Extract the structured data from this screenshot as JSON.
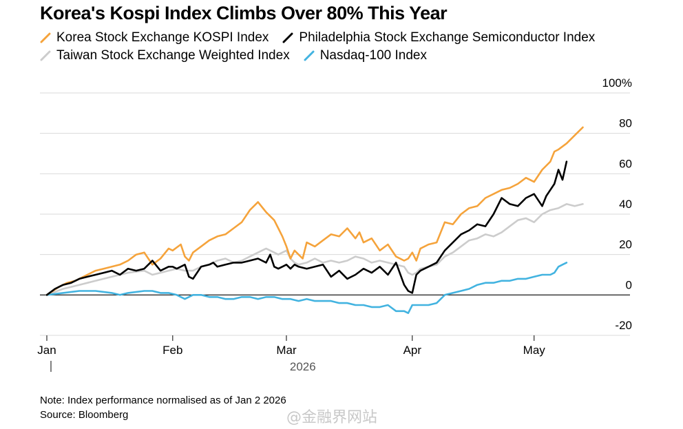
{
  "chart_data": {
    "type": "line",
    "title": "Korea's Kospi Index Climbs Over 80% This Year",
    "xlabel": "2026",
    "ylabel": "",
    "ylim": [
      -20,
      100
    ],
    "yticks": [
      {
        "value": 100,
        "label": "100%"
      },
      {
        "value": 80,
        "label": "80"
      },
      {
        "value": 60,
        "label": "60"
      },
      {
        "value": 40,
        "label": "40"
      },
      {
        "value": 20,
        "label": "20"
      },
      {
        "value": 0,
        "label": "0"
      },
      {
        "value": -20,
        "label": "-20"
      }
    ],
    "xlim": [
      0,
      137
    ],
    "xticks": [
      {
        "value": 0,
        "label": "Jan"
      },
      {
        "value": 31,
        "label": "Feb"
      },
      {
        "value": 59,
        "label": "Mar"
      },
      {
        "value": 90,
        "label": "Apr"
      },
      {
        "value": 120,
        "label": "May"
      }
    ],
    "grid": true,
    "legend_position": "top",
    "series": [
      {
        "name": "Korea Stock Exchange KOSPI Index",
        "color": "#f5a33b",
        "x": [
          0,
          3,
          5,
          7,
          9,
          12,
          14,
          16,
          18,
          20,
          22,
          24,
          26,
          28,
          30,
          31,
          33,
          34,
          35,
          36,
          38,
          40,
          42,
          44,
          46,
          48,
          50,
          52,
          54,
          56,
          57,
          58,
          59,
          60,
          61,
          62,
          63,
          64,
          66,
          68,
          70,
          72,
          74,
          76,
          77,
          78,
          80,
          82,
          84,
          86,
          88,
          89,
          90,
          91,
          92,
          94,
          96,
          98,
          100,
          102,
          104,
          106,
          108,
          110,
          112,
          114,
          116,
          118,
          120,
          122,
          124,
          125,
          126,
          128,
          130,
          132
        ],
        "values": [
          0,
          4,
          6,
          7,
          9,
          12,
          13,
          14,
          15,
          17,
          20,
          21,
          15,
          18,
          23,
          22,
          25,
          19,
          17,
          21,
          24,
          27,
          29,
          30,
          33,
          36,
          42,
          46,
          41,
          37,
          33,
          29,
          24,
          18,
          22,
          20,
          18,
          26,
          24,
          27,
          30,
          29,
          33,
          28,
          31,
          26,
          28,
          22,
          25,
          19,
          17,
          18,
          21,
          17,
          23,
          25,
          26,
          36,
          35,
          40,
          43,
          44,
          48,
          50,
          52,
          53,
          55,
          58,
          56,
          62,
          66,
          71,
          72,
          75,
          79,
          83
        ]
      },
      {
        "name": "Philadelphia Stock Exchange Semiconductor Index",
        "color": "#000000",
        "x": [
          0,
          2,
          4,
          6,
          8,
          10,
          12,
          14,
          16,
          18,
          20,
          22,
          24,
          26,
          28,
          30,
          31,
          32,
          34,
          35,
          36,
          38,
          40,
          41,
          42,
          44,
          46,
          48,
          50,
          52,
          54,
          55,
          56,
          57,
          58,
          59,
          60,
          61,
          62,
          64,
          66,
          68,
          70,
          72,
          74,
          76,
          78,
          80,
          82,
          84,
          86,
          88,
          89,
          90,
          91,
          92,
          94,
          96,
          98,
          100,
          102,
          104,
          106,
          108,
          110,
          112,
          114,
          116,
          118,
          120,
          122,
          123,
          124,
          125,
          126,
          127,
          128
        ],
        "values": [
          0,
          3,
          5,
          6,
          8,
          9,
          10,
          11,
          12,
          10,
          13,
          12,
          13,
          17,
          12,
          14,
          14,
          13,
          15,
          9,
          8,
          14,
          15,
          16,
          14,
          15,
          16,
          16,
          17,
          18,
          16,
          20,
          14,
          13,
          14,
          15,
          13,
          15,
          14,
          13,
          14,
          15,
          9,
          12,
          8,
          10,
          13,
          11,
          14,
          10,
          16,
          5,
          2,
          1,
          10,
          12,
          14,
          16,
          22,
          26,
          30,
          32,
          35,
          34,
          40,
          48,
          45,
          44,
          48,
          50,
          44,
          49,
          52,
          55,
          62,
          57,
          66
        ]
      },
      {
        "name": "Taiwan Stock Exchange Weighted Index",
        "color": "#cccccc",
        "x": [
          0,
          4,
          8,
          12,
          16,
          20,
          24,
          26,
          28,
          30,
          32,
          34,
          36,
          38,
          40,
          42,
          44,
          46,
          48,
          50,
          52,
          54,
          55,
          56,
          57,
          58,
          59,
          60,
          61,
          62,
          64,
          66,
          68,
          70,
          72,
          74,
          76,
          78,
          80,
          82,
          84,
          86,
          88,
          89,
          90,
          91,
          92,
          94,
          96,
          98,
          100,
          102,
          104,
          106,
          108,
          110,
          112,
          114,
          116,
          118,
          120,
          122,
          124,
          126,
          128,
          130,
          132
        ],
        "values": [
          0,
          3,
          5,
          7,
          9,
          11,
          12,
          10,
          11,
          12,
          13,
          12,
          12,
          14,
          15,
          17,
          18,
          16,
          17,
          19,
          21,
          23,
          22,
          21,
          20,
          21,
          22,
          18,
          16,
          15,
          16,
          18,
          16,
          17,
          16,
          17,
          19,
          18,
          16,
          17,
          16,
          15,
          14,
          11,
          10,
          11,
          13,
          14,
          15,
          19,
          21,
          24,
          27,
          28,
          30,
          29,
          31,
          34,
          37,
          38,
          36,
          40,
          42,
          43,
          45,
          44,
          45
        ]
      },
      {
        "name": "Nasdaq-100 Index",
        "color": "#42b3e0",
        "x": [
          0,
          4,
          8,
          12,
          16,
          18,
          20,
          24,
          26,
          28,
          30,
          32,
          34,
          36,
          38,
          40,
          42,
          44,
          46,
          48,
          50,
          52,
          54,
          56,
          58,
          60,
          62,
          64,
          66,
          68,
          70,
          72,
          74,
          76,
          78,
          80,
          82,
          84,
          86,
          88,
          89,
          90,
          91,
          92,
          94,
          96,
          98,
          100,
          102,
          104,
          106,
          108,
          110,
          112,
          114,
          116,
          118,
          120,
          122,
          124,
          125,
          126,
          127,
          128
        ],
        "values": [
          0,
          1,
          2,
          2,
          1,
          0,
          1,
          2,
          2,
          1,
          1,
          0,
          -2,
          0,
          0,
          -1,
          -1,
          -2,
          -2,
          -1,
          -1,
          -2,
          -1,
          -1,
          -2,
          -2,
          -3,
          -2,
          -3,
          -3,
          -3,
          -4,
          -4,
          -5,
          -5,
          -6,
          -6,
          -5,
          -8,
          -8,
          -9,
          -5,
          -5,
          -5,
          -5,
          -4,
          0,
          1,
          2,
          3,
          5,
          6,
          6,
          7,
          7,
          8,
          8,
          9,
          10,
          10,
          11,
          14,
          15,
          16
        ]
      }
    ],
    "notes": [
      "Note: Index performance normalised as of Jan 2 2026",
      "Source: Bloomberg"
    ]
  },
  "watermark": "@金融界网站"
}
